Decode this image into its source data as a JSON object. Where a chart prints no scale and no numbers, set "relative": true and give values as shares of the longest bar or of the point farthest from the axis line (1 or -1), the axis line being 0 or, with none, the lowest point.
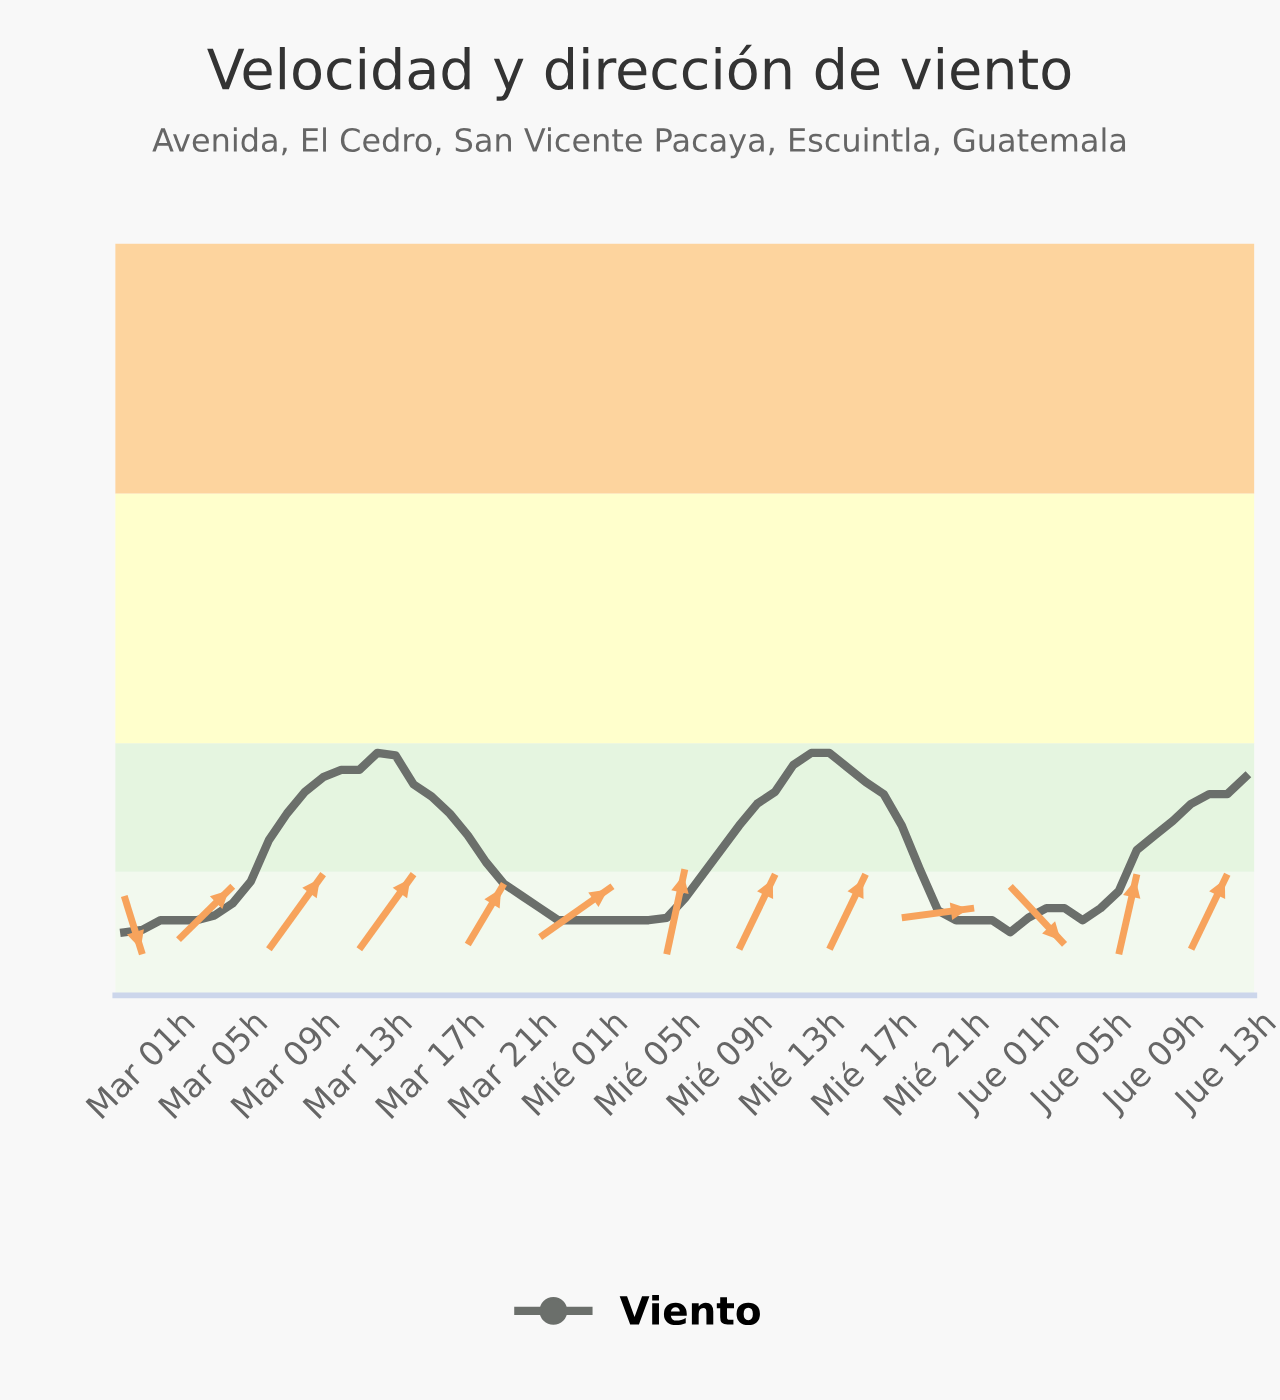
{
  "chart_data": {
    "type": "line",
    "title": "Velocidad y dirección de viento",
    "subtitle": "Avenida, El Cedro, San Vicente Pacaya, Escuintla, Guatemala",
    "relative": true,
    "legend": "bottom",
    "grid": false,
    "line_style": "solid",
    "categories": [
      null,
      "Mar 01h",
      null,
      null,
      null,
      "Mar 05h",
      null,
      null,
      null,
      "Mar 09h",
      null,
      null,
      null,
      "Mar 13h",
      null,
      null,
      null,
      "Mar 17h",
      null,
      null,
      null,
      "Mar 21h",
      null,
      null,
      null,
      "Mié 01h",
      null,
      null,
      null,
      "Mié 05h",
      null,
      null,
      null,
      "Mié 09h",
      null,
      null,
      null,
      "Mié 13h",
      null,
      null,
      null,
      "Mié 17h",
      null,
      null,
      null,
      "Mié 21h",
      null,
      null,
      null,
      "Jue 01h",
      null,
      null,
      null,
      "Jue 05h",
      null,
      null,
      null,
      "Jue 09h",
      null,
      null,
      null,
      "Jue 13h",
      null
    ],
    "bands": [
      {
        "axis": "y",
        "from": 0,
        "to": 0.51,
        "color": "#f2f9ee"
      },
      {
        "axis": "y",
        "from": 0.51,
        "to": 1.04,
        "color": "#e5f5e0"
      },
      {
        "axis": "y",
        "from": 1.04,
        "to": 2.07,
        "color": "#ffffcc"
      },
      {
        "axis": "y",
        "from": 2.07,
        "to": 3.1,
        "color": "#fdd49e"
      }
    ],
    "series": [
      {
        "name": "Viento",
        "color": "#6b6f6b",
        "values": [
          0.26,
          0.27,
          0.31,
          0.31,
          0.31,
          0.33,
          0.38,
          0.47,
          0.64,
          0.75,
          0.84,
          0.9,
          0.93,
          0.93,
          1.0,
          0.99,
          0.87,
          0.82,
          0.75,
          0.66,
          0.55,
          0.46,
          0.41,
          0.36,
          0.31,
          0.31,
          0.31,
          0.31,
          0.31,
          0.31,
          0.32,
          0.4,
          0.5,
          0.6,
          0.7,
          0.79,
          0.84,
          0.95,
          1.0,
          1.0,
          0.94,
          0.88,
          0.83,
          0.7,
          0.52,
          0.35,
          0.31,
          0.31,
          0.31,
          0.26,
          0.32,
          0.36,
          0.36,
          0.31,
          0.36,
          0.43,
          0.6,
          0.66,
          0.72,
          0.79,
          0.83,
          0.83,
          0.9
        ]
      },
      {
        "type": "line",
        "color": "#f7a35c",
        "values": [
          0.41,
          0.17,
          null,
          null,
          null,
          null,
          null,
          null,
          null,
          null,
          null,
          null,
          null,
          null,
          null,
          null,
          null,
          null,
          null,
          null,
          null,
          null,
          null,
          null,
          null,
          null,
          null,
          null,
          null,
          null,
          null,
          null,
          null,
          null,
          null,
          null,
          null,
          null,
          null,
          null,
          null,
          null,
          null,
          null,
          null,
          null,
          null,
          null,
          null,
          null,
          null,
          null,
          null,
          null,
          null,
          null,
          null,
          null,
          null,
          null,
          null,
          null,
          null
        ]
      },
      {
        "type": "line",
        "color": "#f7a35c",
        "values": [
          null,
          null,
          null,
          0.23,
          null,
          null,
          0.45,
          null,
          null,
          null,
          null,
          null,
          null,
          null,
          null,
          null,
          null,
          null,
          null,
          null,
          null,
          null,
          null,
          null,
          null,
          null,
          null,
          null,
          null,
          null,
          null,
          null,
          null,
          null,
          null,
          null,
          null,
          null,
          null,
          null,
          null,
          null,
          null,
          null,
          null,
          null,
          null,
          null,
          null,
          null,
          null,
          null,
          null,
          null,
          null,
          null,
          null,
          null,
          null,
          null,
          null,
          null,
          null
        ]
      },
      {
        "type": "line",
        "color": "#f7a35c",
        "values": [
          null,
          null,
          null,
          null,
          null,
          null,
          null,
          null,
          0.19,
          null,
          null,
          0.5,
          null,
          null,
          null,
          null,
          null,
          null,
          null,
          null,
          null,
          null,
          null,
          null,
          null,
          null,
          null,
          null,
          null,
          null,
          null,
          null,
          null,
          null,
          null,
          null,
          null,
          null,
          null,
          null,
          null,
          null,
          null,
          null,
          null,
          null,
          null,
          null,
          null,
          null,
          null,
          null,
          null,
          null,
          null,
          null,
          null,
          null,
          null,
          null,
          null,
          null,
          null
        ]
      },
      {
        "type": "line",
        "color": "#f7a35c",
        "values": [
          null,
          null,
          null,
          null,
          null,
          null,
          null,
          null,
          null,
          null,
          null,
          null,
          null,
          0.19,
          null,
          null,
          0.5,
          null,
          null,
          null,
          null,
          null,
          null,
          null,
          null,
          null,
          null,
          null,
          null,
          null,
          null,
          null,
          null,
          null,
          null,
          null,
          null,
          null,
          null,
          null,
          null,
          null,
          null,
          null,
          null,
          null,
          null,
          null,
          null,
          null,
          null,
          null,
          null,
          null,
          null,
          null,
          null,
          null,
          null,
          null,
          null,
          null,
          null
        ]
      },
      {
        "type": "line",
        "color": "#f7a35c",
        "values": [
          null,
          null,
          null,
          null,
          null,
          null,
          null,
          null,
          null,
          null,
          null,
          null,
          null,
          null,
          null,
          null,
          null,
          null,
          null,
          0.21,
          null,
          0.46,
          null,
          null,
          null,
          null,
          null,
          null,
          null,
          null,
          null,
          null,
          null,
          null,
          null,
          null,
          null,
          null,
          null,
          null,
          null,
          null,
          null,
          null,
          null,
          null,
          null,
          null,
          null,
          null,
          null,
          null,
          null,
          null,
          null,
          null,
          null,
          null,
          null,
          null,
          null,
          null,
          null
        ]
      },
      {
        "type": "line",
        "color": "#f7a35c",
        "values": [
          null,
          null,
          null,
          null,
          null,
          null,
          null,
          null,
          null,
          null,
          null,
          null,
          null,
          null,
          null,
          null,
          null,
          null,
          null,
          null,
          null,
          null,
          null,
          0.24,
          null,
          null,
          null,
          0.45,
          null,
          null,
          null,
          null,
          null,
          null,
          null,
          null,
          null,
          null,
          null,
          null,
          null,
          null,
          null,
          null,
          null,
          null,
          null,
          null,
          null,
          null,
          null,
          null,
          null,
          null,
          null,
          null,
          null,
          null,
          null,
          null,
          null,
          null,
          null
        ]
      },
      {
        "type": "line",
        "color": "#f7a35c",
        "values": [
          null,
          null,
          null,
          null,
          null,
          null,
          null,
          null,
          null,
          null,
          null,
          null,
          null,
          null,
          null,
          null,
          null,
          null,
          null,
          null,
          null,
          null,
          null,
          null,
          null,
          null,
          null,
          null,
          null,
          null,
          0.17,
          0.52,
          null,
          null,
          null,
          null,
          null,
          null,
          null,
          null,
          null,
          null,
          null,
          null,
          null,
          null,
          null,
          null,
          null,
          null,
          null,
          null,
          null,
          null,
          null,
          null,
          null,
          null,
          null,
          null,
          null,
          null,
          null
        ]
      },
      {
        "type": "line",
        "color": "#f7a35c",
        "values": [
          null,
          null,
          null,
          null,
          null,
          null,
          null,
          null,
          null,
          null,
          null,
          null,
          null,
          null,
          null,
          null,
          null,
          null,
          null,
          null,
          null,
          null,
          null,
          null,
          null,
          null,
          null,
          null,
          null,
          null,
          null,
          null,
          null,
          null,
          0.19,
          null,
          0.5,
          null,
          null,
          null,
          null,
          null,
          null,
          null,
          null,
          null,
          null,
          null,
          null,
          null,
          null,
          null,
          null,
          null,
          null,
          null,
          null,
          null,
          null,
          null,
          null,
          null,
          null
        ]
      },
      {
        "type": "line",
        "color": "#f7a35c",
        "values": [
          null,
          null,
          null,
          null,
          null,
          null,
          null,
          null,
          null,
          null,
          null,
          null,
          null,
          null,
          null,
          null,
          null,
          null,
          null,
          null,
          null,
          null,
          null,
          null,
          null,
          null,
          null,
          null,
          null,
          null,
          null,
          null,
          null,
          null,
          null,
          null,
          null,
          null,
          null,
          0.19,
          null,
          0.5,
          null,
          null,
          null,
          null,
          null,
          null,
          null,
          null,
          null,
          null,
          null,
          null,
          null,
          null,
          null,
          null,
          null,
          null,
          null,
          null,
          null
        ]
      },
      {
        "type": "line",
        "color": "#f7a35c",
        "values": [
          null,
          null,
          null,
          null,
          null,
          null,
          null,
          null,
          null,
          null,
          null,
          null,
          null,
          null,
          null,
          null,
          null,
          null,
          null,
          null,
          null,
          null,
          null,
          null,
          null,
          null,
          null,
          null,
          null,
          null,
          null,
          null,
          null,
          null,
          null,
          null,
          null,
          null,
          null,
          null,
          null,
          null,
          null,
          0.32,
          null,
          null,
          null,
          0.36,
          null,
          null,
          null,
          null,
          null,
          null,
          null,
          null,
          null,
          null,
          null,
          null,
          null,
          null,
          null
        ]
      },
      {
        "type": "line",
        "color": "#f7a35c",
        "values": [
          null,
          null,
          null,
          null,
          null,
          null,
          null,
          null,
          null,
          null,
          null,
          null,
          null,
          null,
          null,
          null,
          null,
          null,
          null,
          null,
          null,
          null,
          null,
          null,
          null,
          null,
          null,
          null,
          null,
          null,
          null,
          null,
          null,
          null,
          null,
          null,
          null,
          null,
          null,
          null,
          null,
          null,
          null,
          null,
          null,
          null,
          null,
          null,
          null,
          0.45,
          null,
          null,
          0.21,
          null,
          null,
          null,
          null,
          null,
          null,
          null,
          null,
          null,
          null
        ]
      },
      {
        "type": "line",
        "color": "#f7a35c",
        "values": [
          null,
          null,
          null,
          null,
          null,
          null,
          null,
          null,
          null,
          null,
          null,
          null,
          null,
          null,
          null,
          null,
          null,
          null,
          null,
          null,
          null,
          null,
          null,
          null,
          null,
          null,
          null,
          null,
          null,
          null,
          null,
          null,
          null,
          null,
          null,
          null,
          null,
          null,
          null,
          null,
          null,
          null,
          null,
          null,
          null,
          null,
          null,
          null,
          null,
          null,
          null,
          null,
          null,
          null,
          null,
          0.17,
          0.5,
          null,
          null,
          null,
          null,
          null,
          null
        ]
      },
      {
        "type": "line",
        "color": "#f7a35c",
        "values": [
          null,
          null,
          null,
          null,
          null,
          null,
          null,
          null,
          null,
          null,
          null,
          null,
          null,
          null,
          null,
          null,
          null,
          null,
          null,
          null,
          null,
          null,
          null,
          null,
          null,
          null,
          null,
          null,
          null,
          null,
          null,
          null,
          null,
          null,
          null,
          null,
          null,
          null,
          null,
          null,
          null,
          null,
          null,
          null,
          null,
          null,
          null,
          null,
          null,
          null,
          null,
          null,
          null,
          null,
          null,
          null,
          null,
          null,
          null,
          0.19,
          null,
          0.5,
          null
        ]
      }
    ]
  }
}
